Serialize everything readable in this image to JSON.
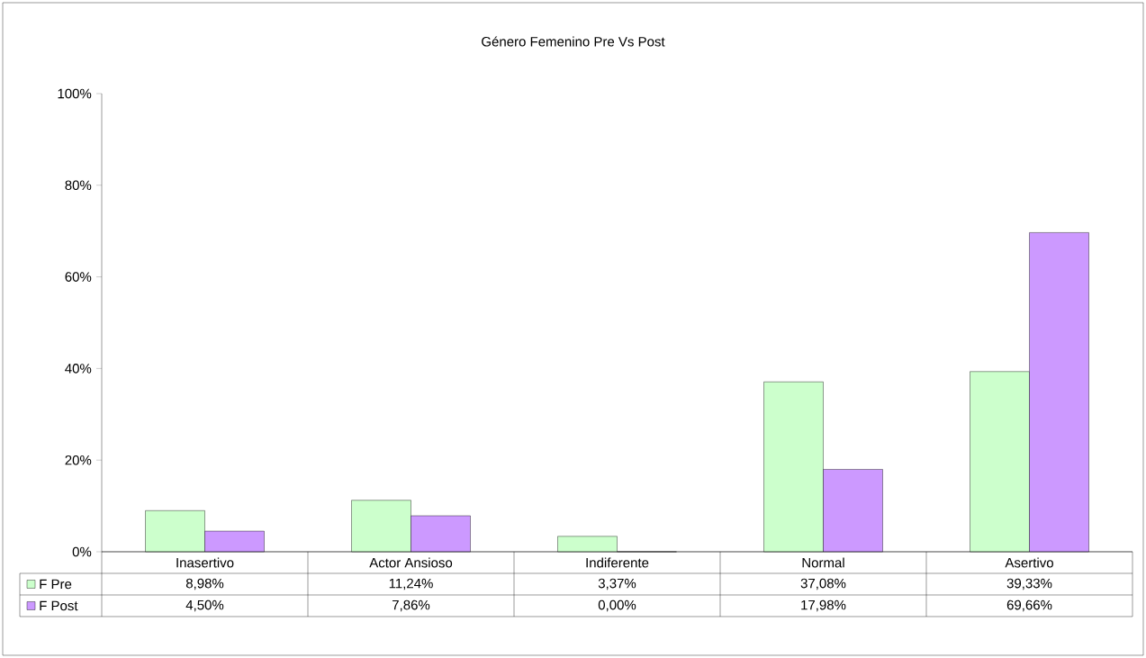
{
  "chart_data": {
    "type": "bar",
    "title": "Género Femenino Pre Vs Post",
    "categories": [
      "Inasertivo",
      "Actor Ansioso",
      "Indiferente",
      "Normal",
      "Asertivo"
    ],
    "series": [
      {
        "name": "F Pre",
        "color": "#ccffcc",
        "values": [
          8.98,
          11.24,
          3.37,
          37.08,
          39.33
        ],
        "value_labels": [
          "8,98%",
          "11,24%",
          "3,37%",
          "37,08%",
          "39,33%"
        ]
      },
      {
        "name": "F Post",
        "color": "#cc99ff",
        "values": [
          4.5,
          7.86,
          0.0,
          17.98,
          69.66
        ],
        "value_labels": [
          "4,50%",
          "7,86%",
          "0,00%",
          "17,98%",
          "69,66%"
        ]
      }
    ],
    "ylim": [
      0,
      100
    ],
    "yticks": [
      {
        "value": 0,
        "label": "0%"
      },
      {
        "value": 20,
        "label": "20%"
      },
      {
        "value": 40,
        "label": "40%"
      },
      {
        "value": 60,
        "label": "60%"
      },
      {
        "value": 80,
        "label": "80%"
      },
      {
        "value": 100,
        "label": "100%"
      }
    ],
    "grid": false,
    "legend": "bottom"
  }
}
